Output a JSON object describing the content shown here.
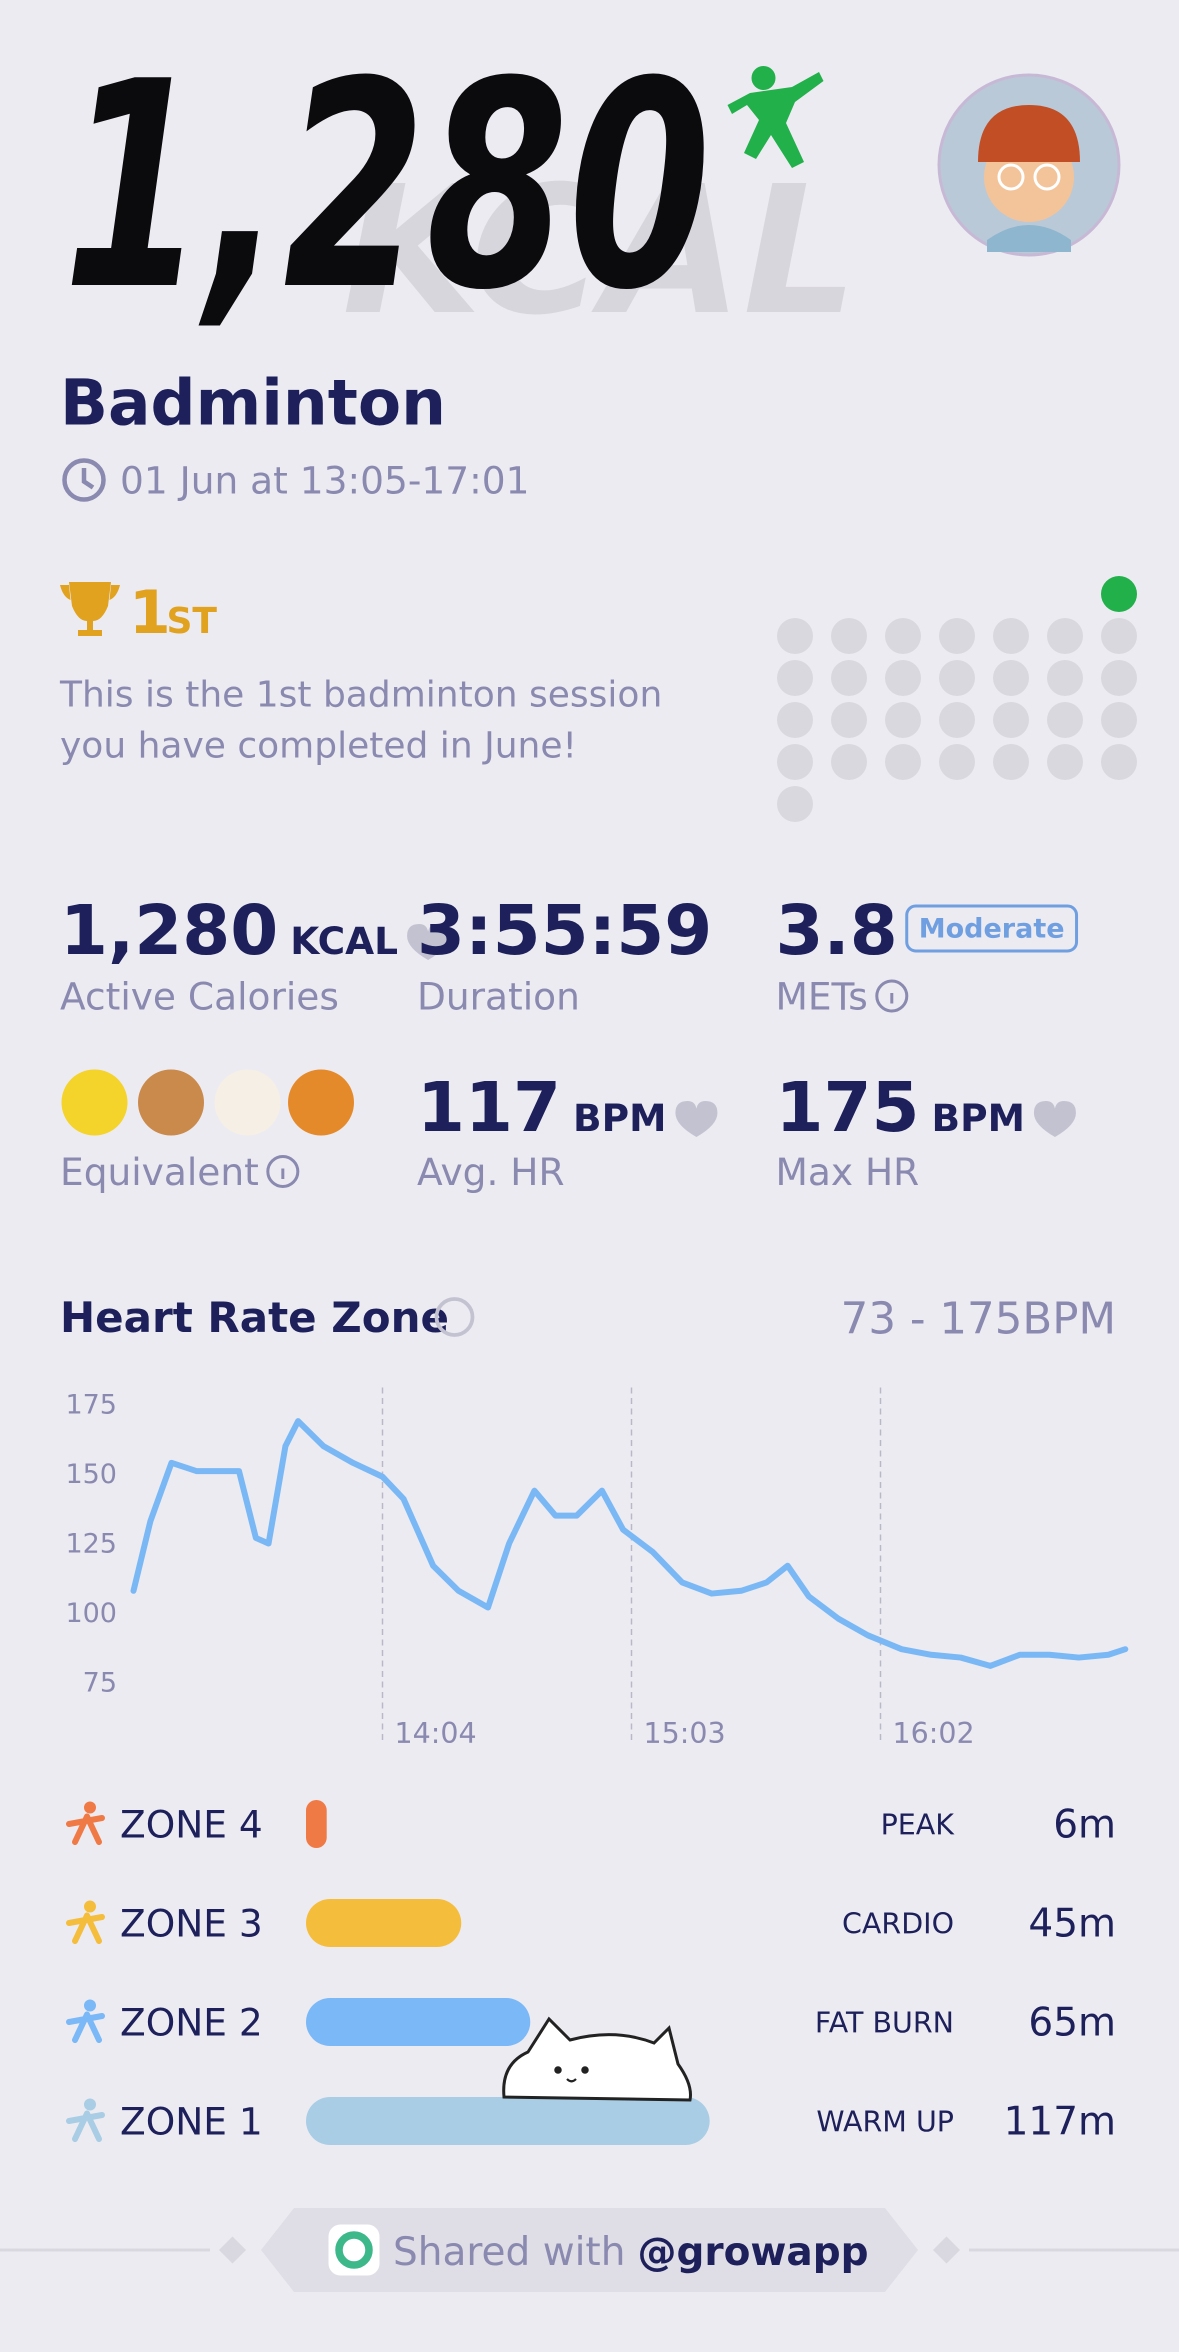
{
  "header": {
    "calories": "1,280",
    "calories_unit": "KCAL"
  },
  "activity": {
    "name": "Badminton",
    "time": "01 Jun at 13:05-17:01"
  },
  "achievement": {
    "rank": "1",
    "rank_suffix": "ST",
    "message_lines": [
      "This is the 1st badminton session",
      "you have completed in June!"
    ]
  },
  "stats": [
    {
      "value": "1,280",
      "unit": "KCAL",
      "label": "Active Calories"
    },
    {
      "value": "3:55:59",
      "label": "Duration"
    },
    {
      "value": "3.8",
      "badge": "Moderate",
      "label": "METs"
    },
    {
      "label": "Equivalent"
    },
    {
      "value": "117",
      "unit": "BPM",
      "label": "Avg. HR"
    },
    {
      "value": "175",
      "unit": "BPM",
      "label": "Max HR"
    }
  ],
  "heart_rate": {
    "title": "Heart Rate Zone",
    "range": "73 - 175BPM",
    "chart": {
      "type": "line",
      "x": [
        0,
        4,
        9,
        15,
        20,
        25,
        29,
        32,
        36,
        39,
        45,
        52,
        59,
        64,
        71,
        77,
        84,
        89,
        95,
        100,
        105,
        111,
        116,
        123,
        130,
        137,
        144,
        150,
        155,
        160,
        167,
        174,
        182,
        189,
        196,
        203,
        210,
        217,
        224,
        231,
        235
      ],
      "values": [
        108,
        133,
        154,
        151,
        151,
        151,
        127,
        125,
        160,
        169,
        160,
        154,
        149,
        141,
        117,
        108,
        102,
        125,
        144,
        135,
        135,
        144,
        130,
        122,
        111,
        107,
        108,
        111,
        117,
        106,
        98,
        92,
        87,
        85,
        84,
        81,
        85,
        85,
        84,
        85,
        87
      ],
      "xlim": [
        0,
        236
      ],
      "ylim": [
        70,
        180
      ],
      "yticks": [
        75,
        100,
        125,
        150,
        175
      ],
      "xticks": [
        {
          "value": 59,
          "label": "14:04"
        },
        {
          "value": 118,
          "label": "15:03"
        },
        {
          "value": 177,
          "label": "16:02"
        }
      ],
      "color": "#7ab8f5"
    }
  },
  "zones": [
    {
      "name": "ZONE 4",
      "type": "PEAK",
      "value": 6,
      "value_label": "6m",
      "color": "#f07a45"
    },
    {
      "name": "ZONE 3",
      "type": "CARDIO",
      "value": 45,
      "value_label": "45m",
      "color": "#f5bd3c"
    },
    {
      "name": "ZONE 2",
      "type": "FAT BURN",
      "value": 65,
      "value_label": "65m",
      "color": "#7ab8f7"
    },
    {
      "name": "ZONE 1",
      "type": "WARM UP",
      "value": 117,
      "value_label": "117m",
      "color": "#a9cde4"
    }
  ],
  "footer": {
    "prefix": "Shared with",
    "handle": "@growapp"
  }
}
